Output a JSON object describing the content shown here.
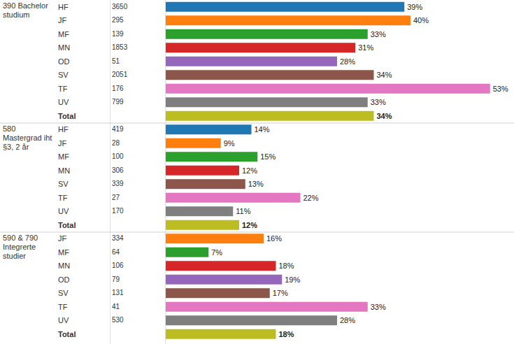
{
  "chart_data": [
    {
      "type": "bar",
      "orientation": "horizontal",
      "title": "390 Bachelor studium",
      "categories": [
        "HF",
        "JF",
        "MF",
        "MN",
        "OD",
        "SV",
        "TF",
        "UV",
        "Total"
      ],
      "counts": [
        3650,
        295,
        139,
        1853,
        51,
        2051,
        176,
        799,
        null
      ],
      "values": [
        39,
        40,
        33,
        31,
        28,
        34,
        53,
        33,
        34
      ],
      "value_labels": [
        "39%",
        "40%",
        "33%",
        "31%",
        "28%",
        "34%",
        "53%",
        "33%",
        "34%"
      ],
      "colors": [
        "#1f77b4",
        "#ff7f0e",
        "#2ca02c",
        "#d62728",
        "#9467bd",
        "#8c564b",
        "#e377c2",
        "#7f7f7f",
        "#bcbd22"
      ],
      "xlim": [
        0,
        56
      ],
      "data_labels": true,
      "tick_labels": false
    },
    {
      "type": "bar",
      "orientation": "horizontal",
      "title": "580 Mastergrad iht §3, 2 år",
      "categories": [
        "HF",
        "JF",
        "MF",
        "MN",
        "SV",
        "TF",
        "UV",
        "Total"
      ],
      "counts": [
        419,
        28,
        100,
        306,
        339,
        27,
        170,
        null
      ],
      "values": [
        14,
        9,
        15,
        12,
        13,
        22,
        11,
        12
      ],
      "value_labels": [
        "14%",
        "9%",
        "15%",
        "12%",
        "13%",
        "22%",
        "11%",
        "12%"
      ],
      "colors": [
        "#1f77b4",
        "#ff7f0e",
        "#2ca02c",
        "#d62728",
        "#8c564b",
        "#e377c2",
        "#7f7f7f",
        "#bcbd22"
      ],
      "xlim": [
        0,
        56
      ],
      "data_labels": true,
      "tick_labels": false
    },
    {
      "type": "bar",
      "orientation": "horizontal",
      "title": "590 & 790 Integrerte studier",
      "categories": [
        "JF",
        "MF",
        "MN",
        "OD",
        "SV",
        "TF",
        "UV",
        "Total"
      ],
      "counts": [
        334,
        64,
        106,
        79,
        131,
        41,
        530,
        null
      ],
      "values": [
        16,
        7,
        18,
        19,
        17,
        33,
        28,
        18
      ],
      "value_labels": [
        "16%",
        "7%",
        "18%",
        "19%",
        "17%",
        "33%",
        "28%",
        "18%"
      ],
      "colors": [
        "#ff7f0e",
        "#2ca02c",
        "#d62728",
        "#9467bd",
        "#8c564b",
        "#e377c2",
        "#7f7f7f",
        "#bcbd22"
      ],
      "xlim": [
        0,
        56
      ],
      "data_labels": true,
      "tick_labels": false
    }
  ]
}
